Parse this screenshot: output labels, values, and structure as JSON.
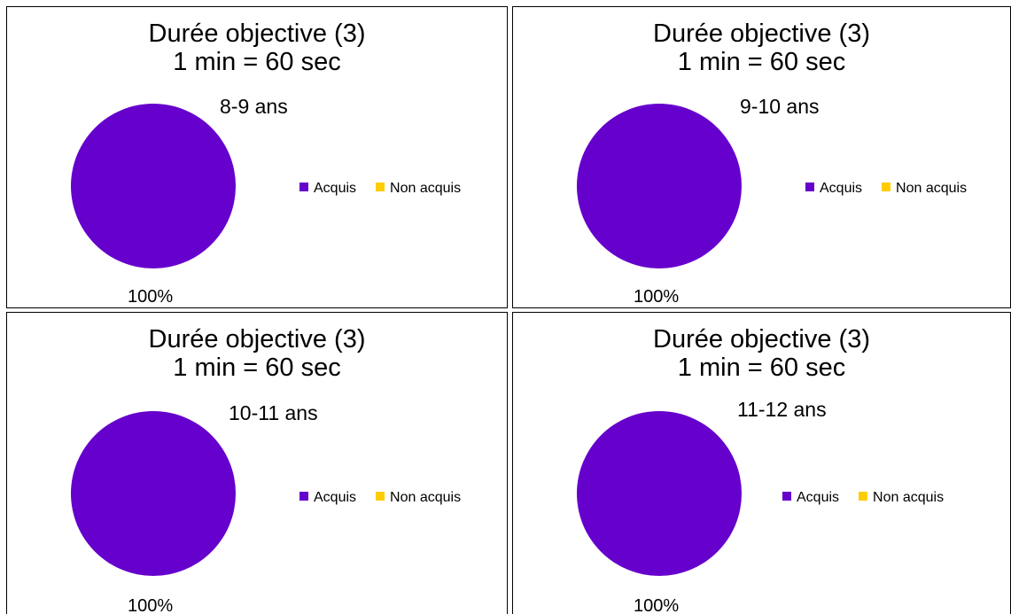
{
  "chart_data": [
    {
      "type": "pie",
      "title": [
        "Durée objective (3)",
        "1 min = 60 sec"
      ],
      "subtitle": "8-9 ans",
      "series": [
        {
          "name": "Acquis",
          "value": 100,
          "color": "#6600CC"
        },
        {
          "name": "Non acquis",
          "value": 0,
          "color": "#FFCC00"
        }
      ],
      "data_label": "100%",
      "legend_position": "right"
    },
    {
      "type": "pie",
      "title": [
        "Durée objective (3)",
        "1 min = 60 sec"
      ],
      "subtitle": "9-10 ans",
      "series": [
        {
          "name": "Acquis",
          "value": 100,
          "color": "#6600CC"
        },
        {
          "name": "Non acquis",
          "value": 0,
          "color": "#FFCC00"
        }
      ],
      "data_label": "100%",
      "legend_position": "right"
    },
    {
      "type": "pie",
      "title": [
        "Durée objective (3)",
        "1 min = 60 sec"
      ],
      "subtitle": "10-11 ans",
      "series": [
        {
          "name": "Acquis",
          "value": 100,
          "color": "#6600CC"
        },
        {
          "name": "Non acquis",
          "value": 0,
          "color": "#FFCC00"
        }
      ],
      "data_label": "100%",
      "legend_position": "right"
    },
    {
      "type": "pie",
      "title": [
        "Durée objective (3)",
        "1 min = 60 sec"
      ],
      "subtitle": "11-12 ans",
      "series": [
        {
          "name": "Acquis",
          "value": 100,
          "color": "#6600CC"
        },
        {
          "name": "Non acquis",
          "value": 0,
          "color": "#FFCC00"
        }
      ],
      "data_label": "100%",
      "legend_position": "right"
    }
  ]
}
